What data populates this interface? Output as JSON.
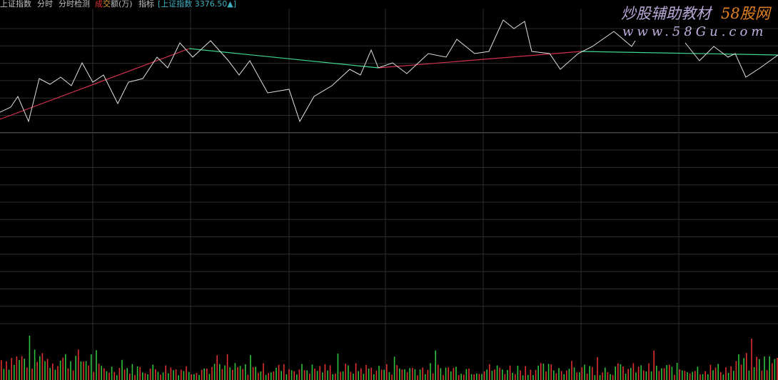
{
  "header": {
    "symbol": "上证指数",
    "tab1": "分时",
    "tab2": "分时检测",
    "indicator_a": "成",
    "indicator_b": "交",
    "indicator_c": "额(万)",
    "indicator_d": "指标",
    "quote": "[上证指数 3376.50▲]"
  },
  "watermark": {
    "brand": "炒股辅助教材",
    "brand_accent": "58股网",
    "url": "www.58Gu.com"
  }
}
